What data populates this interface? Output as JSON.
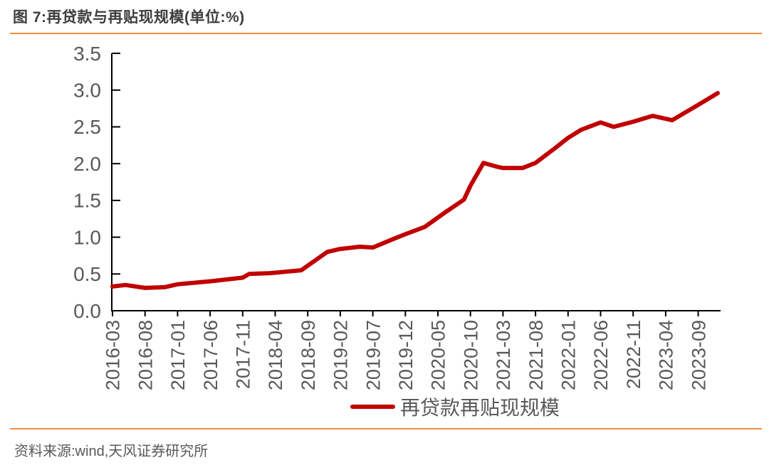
{
  "figure": {
    "title": "图 7:再贷款与再贴现规模(单位:%)",
    "source": "资料来源:wind,天风证券研究所",
    "accent_color": "#ED8E42"
  },
  "chart_data": {
    "type": "line",
    "title": "再贷款与再贴现规模",
    "unit": "%",
    "xlabel": "",
    "ylabel": "",
    "ylim": [
      0.0,
      3.5
    ],
    "ytick_interval": 0.5,
    "yticks": [
      "0.0",
      "0.5",
      "1.0",
      "1.5",
      "2.0",
      "2.5",
      "3.0",
      "3.5"
    ],
    "xticks": [
      "2016-03",
      "2016-08",
      "2017-01",
      "2017-06",
      "2017-11",
      "2018-04",
      "2018-09",
      "2019-02",
      "2019-07",
      "2019-12",
      "2020-05",
      "2020-10",
      "2021-03",
      "2021-08",
      "2022-01",
      "2022-06",
      "2022-11",
      "2023-04",
      "2023-09"
    ],
    "x_range": [
      "2016-03",
      "2023-12"
    ],
    "grid": false,
    "legend_position": "bottom",
    "axis_color": "#000000",
    "tick_label_color": "#595959",
    "series": [
      {
        "name": "再贷款再贴现规模",
        "color": "#C00000",
        "points": [
          {
            "x": "2016-03",
            "y": 0.33
          },
          {
            "x": "2016-05",
            "y": 0.35
          },
          {
            "x": "2016-08",
            "y": 0.31
          },
          {
            "x": "2016-11",
            "y": 0.32
          },
          {
            "x": "2017-01",
            "y": 0.36
          },
          {
            "x": "2017-06",
            "y": 0.4
          },
          {
            "x": "2017-11",
            "y": 0.45
          },
          {
            "x": "2017-12",
            "y": 0.5
          },
          {
            "x": "2018-03",
            "y": 0.51
          },
          {
            "x": "2018-08",
            "y": 0.55
          },
          {
            "x": "2018-12",
            "y": 0.8
          },
          {
            "x": "2019-02",
            "y": 0.84
          },
          {
            "x": "2019-05",
            "y": 0.87
          },
          {
            "x": "2019-07",
            "y": 0.86
          },
          {
            "x": "2019-10",
            "y": 0.97
          },
          {
            "x": "2019-12",
            "y": 1.04
          },
          {
            "x": "2020-03",
            "y": 1.14
          },
          {
            "x": "2020-06",
            "y": 1.33
          },
          {
            "x": "2020-09",
            "y": 1.51
          },
          {
            "x": "2020-10",
            "y": 1.7
          },
          {
            "x": "2020-12",
            "y": 2.01
          },
          {
            "x": "2021-02",
            "y": 1.96
          },
          {
            "x": "2021-03",
            "y": 1.94
          },
          {
            "x": "2021-06",
            "y": 1.94
          },
          {
            "x": "2021-08",
            "y": 2.01
          },
          {
            "x": "2021-11",
            "y": 2.21
          },
          {
            "x": "2022-01",
            "y": 2.35
          },
          {
            "x": "2022-03",
            "y": 2.46
          },
          {
            "x": "2022-06",
            "y": 2.56
          },
          {
            "x": "2022-08",
            "y": 2.5
          },
          {
            "x": "2022-11",
            "y": 2.57
          },
          {
            "x": "2023-02",
            "y": 2.65
          },
          {
            "x": "2023-05",
            "y": 2.59
          },
          {
            "x": "2023-09",
            "y": 2.8
          },
          {
            "x": "2023-12",
            "y": 2.96
          }
        ]
      }
    ]
  }
}
